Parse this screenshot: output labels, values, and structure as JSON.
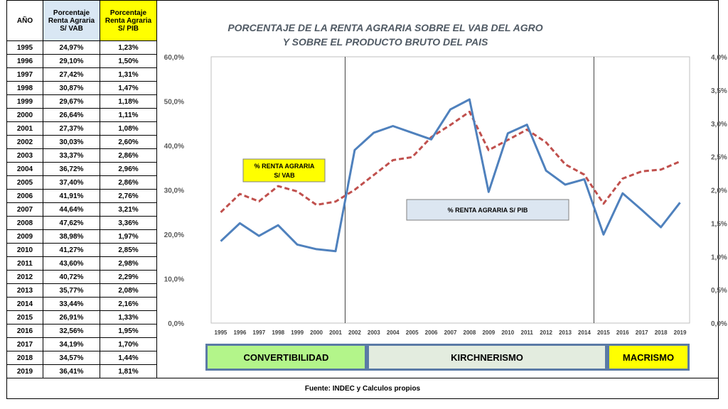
{
  "table": {
    "headers": [
      {
        "lines": [
          "AÑO"
        ]
      },
      {
        "lines": [
          "Porcentaje",
          "Renta Agraria",
          "S/ VAB"
        ]
      },
      {
        "lines": [
          "Porcentaje",
          "Renta Agraria",
          "S/ PIB"
        ]
      }
    ],
    "rows": [
      [
        "1995",
        "24,97%",
        "1,23%"
      ],
      [
        "1996",
        "29,10%",
        "1,50%"
      ],
      [
        "1997",
        "27,42%",
        "1,31%"
      ],
      [
        "1998",
        "30,87%",
        "1,47%"
      ],
      [
        "1999",
        "29,67%",
        "1,18%"
      ],
      [
        "2000",
        "26,64%",
        "1,11%"
      ],
      [
        "2001",
        "27,37%",
        "1,08%"
      ],
      [
        "2002",
        "30,03%",
        "2,60%"
      ],
      [
        "2003",
        "33,37%",
        "2,86%"
      ],
      [
        "2004",
        "36,72%",
        "2,96%"
      ],
      [
        "2005",
        "37,40%",
        "2,86%"
      ],
      [
        "2006",
        "41,91%",
        "2,76%"
      ],
      [
        "2007",
        "44,64%",
        "3,21%"
      ],
      [
        "2008",
        "47,62%",
        "3,36%"
      ],
      [
        "2009",
        "38,98%",
        "1,97%"
      ],
      [
        "2010",
        "41,27%",
        "2,85%"
      ],
      [
        "2011",
        "43,60%",
        "2,98%"
      ],
      [
        "2012",
        "40,72%",
        "2,29%"
      ],
      [
        "2013",
        "35,77%",
        "2,08%"
      ],
      [
        "2014",
        "33,44%",
        "2,16%"
      ],
      [
        "2015",
        "26,91%",
        "1,33%"
      ],
      [
        "2016",
        "32,56%",
        "1,95%"
      ],
      [
        "2017",
        "34,19%",
        "1,70%"
      ],
      [
        "2018",
        "34,57%",
        "1,44%"
      ],
      [
        "2019",
        "36,41%",
        "1,81%"
      ]
    ]
  },
  "chart_data": {
    "type": "line",
    "title": [
      "PORCENTAJE DE LA RENTA  AGRARIA SOBRE EL VAB DEL AGRO",
      "Y SOBRE EL PRODUCTO BRUTO DEL PAIS"
    ],
    "x": [
      "1995",
      "1996",
      "1997",
      "1998",
      "1999",
      "2000",
      "2001",
      "2002",
      "2003",
      "2004",
      "2005",
      "2006",
      "2007",
      "2008",
      "2009",
      "2010",
      "2011",
      "2012",
      "2013",
      "2014",
      "2015",
      "2016",
      "2017",
      "2018",
      "2019"
    ],
    "y_left": {
      "min": 0,
      "max": 60,
      "ticks": [
        "0,0%",
        "10,0%",
        "20,0%",
        "30,0%",
        "40,0%",
        "50,0%",
        "60,0%"
      ]
    },
    "y_right": {
      "min": 0,
      "max": 4,
      "ticks": [
        "0,0%",
        "0,5%",
        "1,0%",
        "1,5%",
        "2,0%",
        "2,5%",
        "3,0%",
        "3,5%",
        "4,0%"
      ]
    },
    "series": [
      {
        "name": "% RENTA AGRARIA S/ VAB",
        "axis": "left",
        "style": "dashed",
        "color": "#c0504d",
        "values": [
          24.97,
          29.1,
          27.42,
          30.87,
          29.67,
          26.64,
          27.37,
          30.03,
          33.37,
          36.72,
          37.4,
          41.91,
          44.64,
          47.62,
          38.98,
          41.27,
          43.6,
          40.72,
          35.77,
          33.44,
          26.91,
          32.56,
          34.19,
          34.57,
          36.41
        ]
      },
      {
        "name": "% RENTA AGRARIA S/ PIB",
        "axis": "right",
        "style": "solid",
        "color": "#4f81bd",
        "values": [
          1.23,
          1.5,
          1.31,
          1.47,
          1.18,
          1.11,
          1.08,
          2.6,
          2.86,
          2.96,
          2.86,
          2.76,
          3.21,
          3.36,
          1.97,
          2.85,
          2.98,
          2.29,
          2.08,
          2.16,
          1.33,
          1.95,
          1.7,
          1.44,
          1.81
        ]
      }
    ],
    "annotations": [
      {
        "text_lines": [
          "% RENTA AGRARIA",
          "S/ VAB"
        ],
        "bg": "#ffff00"
      },
      {
        "text_lines": [
          "% RENTA AGRARIA S/ PIB"
        ],
        "bg": "#dce6f1"
      }
    ],
    "vertical_lines_between": [
      [
        "2001",
        "2002"
      ],
      [
        "2014",
        "2015"
      ]
    ],
    "grid": false
  },
  "periods": [
    {
      "label": "CONVERTIBILIDAD",
      "color": "#b3f58a"
    },
    {
      "label": "KIRCHNERISMO",
      "color": "#e3ecdf"
    },
    {
      "label": "MACRISMO",
      "color": "#ffff00"
    }
  ],
  "source": "Fuente: INDEC y Calculos propios"
}
